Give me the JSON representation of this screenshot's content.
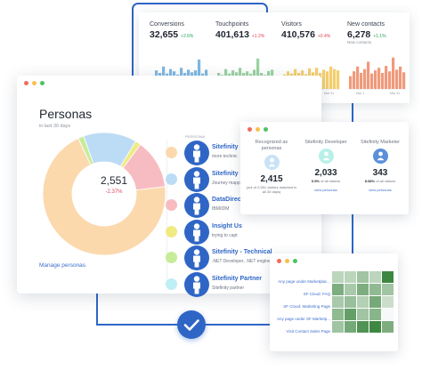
{
  "kpis": [
    {
      "label": "Conversions",
      "value": "32,655",
      "change": "+2.6%",
      "change_color": "#27a35a",
      "sub": "",
      "bars": [
        0.42,
        0.58,
        0.5,
        0.7,
        0.48,
        0.62,
        0.55,
        0.45,
        0.66,
        0.5,
        0.6,
        0.52,
        0.58,
        0.92,
        0.48,
        0.6
      ],
      "axis": [
        "Mar 1",
        "Mar 31"
      ],
      "color": "#7fb8e2"
    },
    {
      "label": "Touchpoints",
      "value": "401,613",
      "change": "+1.2%",
      "change_color": "#e0455a",
      "sub": "",
      "bars": [
        0.5,
        0.44,
        0.62,
        0.48,
        0.58,
        0.52,
        0.66,
        0.5,
        0.55,
        0.47,
        0.6,
        0.95,
        0.5,
        0.44,
        0.56,
        0.6
      ],
      "axis": [
        "Mar 1",
        "Mar 31"
      ],
      "color": "#9ad3a1"
    },
    {
      "label": "Visitors",
      "value": "410,576",
      "change": "+0.4%",
      "change_color": "#e0455a",
      "sub": "",
      "bars": [
        0.45,
        0.55,
        0.48,
        0.62,
        0.5,
        0.58,
        0.46,
        0.64,
        0.52,
        0.66,
        0.5,
        0.6,
        0.55,
        0.7,
        0.62,
        0.58
      ],
      "axis": [
        "Mar 1",
        "Mar 31"
      ],
      "color": "#f5cf6e"
    },
    {
      "label": "New contacts",
      "value": "6,278",
      "change": "+1.1%",
      "change_color": "#27a35a",
      "sub": "New contacts",
      "bars": [
        0.4,
        0.55,
        0.7,
        0.5,
        0.62,
        0.85,
        0.48,
        0.58,
        0.66,
        0.5,
        0.72,
        0.55,
        0.98,
        0.6,
        0.7,
        0.52
      ],
      "axis": [
        "Mar 1",
        "Mar 31"
      ],
      "color": "#f09a7b"
    }
  ],
  "window_dots": [
    "#f06b5c",
    "#f5c24a",
    "#4cc463"
  ],
  "personas": {
    "title": "Personas",
    "subtitle": "in last 30 days",
    "total": "2,551",
    "change": "-2.37%",
    "manage_link": "Manage personas",
    "column_header": "PERSONA",
    "slices": [
      {
        "value": 0.7,
        "color": "#fbd9ad"
      },
      {
        "value": 0.015,
        "color": "#c6ec9a"
      },
      {
        "value": 0.14,
        "color": "#bcdcf5"
      },
      {
        "value": 0.015,
        "color": "#f0ea83"
      },
      {
        "value": 0.13,
        "color": "#f7bcc1"
      }
    ],
    "rows": [
      {
        "swatch": "#fbd9ad",
        "name": "Sitefinity D",
        "desc": "more technic"
      },
      {
        "swatch": "#bcdcf5",
        "name": "Sitefinity R",
        "desc": "Journey mapp testing"
      },
      {
        "swatch": "#f7bcc1",
        "name": "DataDirect",
        "desc": "IBM/IDM"
      },
      {
        "swatch": "#f0ea83",
        "name": "Insight Us",
        "desc": "trying to capt"
      },
      {
        "swatch": "#c6ec9a",
        "name": "Sitefinity - Technical",
        "desc": ".NET Developer, .NET engineer, IT developer"
      },
      {
        "swatch": "#bdeff5",
        "name": "Sitefinity Partner",
        "desc": "Sitefinity partner"
      }
    ]
  },
  "stats": {
    "columns": [
      {
        "title": "Recognized as personas",
        "icon_color": "#c9e2f5",
        "value": "2,415",
        "pct": "",
        "note": "(out of 2,551 visitors matched in all 30 days)",
        "link": ""
      },
      {
        "title": "Sitefinity Developer",
        "icon_color": "#b8f0e8",
        "value": "2,033",
        "pct": "0.5%",
        "note": "of all visitors",
        "link": "view personas"
      },
      {
        "title": "Sitefinity Marketer",
        "icon_color": "#5b8fd8",
        "value": "343",
        "pct": "8.08%",
        "note": "of all visitors",
        "link": "view personas"
      }
    ]
  },
  "heatmap": {
    "labels": [
      "Any page under Marketplac...",
      "SF Cloud: FAQ",
      "SF Cloud: Marketing Page",
      "Any page under SF Marketp...",
      "Visit Contact Sales Page"
    ],
    "grid": [
      [
        0.2,
        0.2,
        0.35,
        0.2,
        0.9
      ],
      [
        0.55,
        0.3,
        0.55,
        0.45,
        0.35
      ],
      [
        0.3,
        0.4,
        0.25,
        0.6,
        0.12
      ],
      [
        0.45,
        0.7,
        0.35,
        0.5,
        0.0
      ],
      [
        0.35,
        0.6,
        0.8,
        0.9,
        0.55
      ]
    ]
  }
}
